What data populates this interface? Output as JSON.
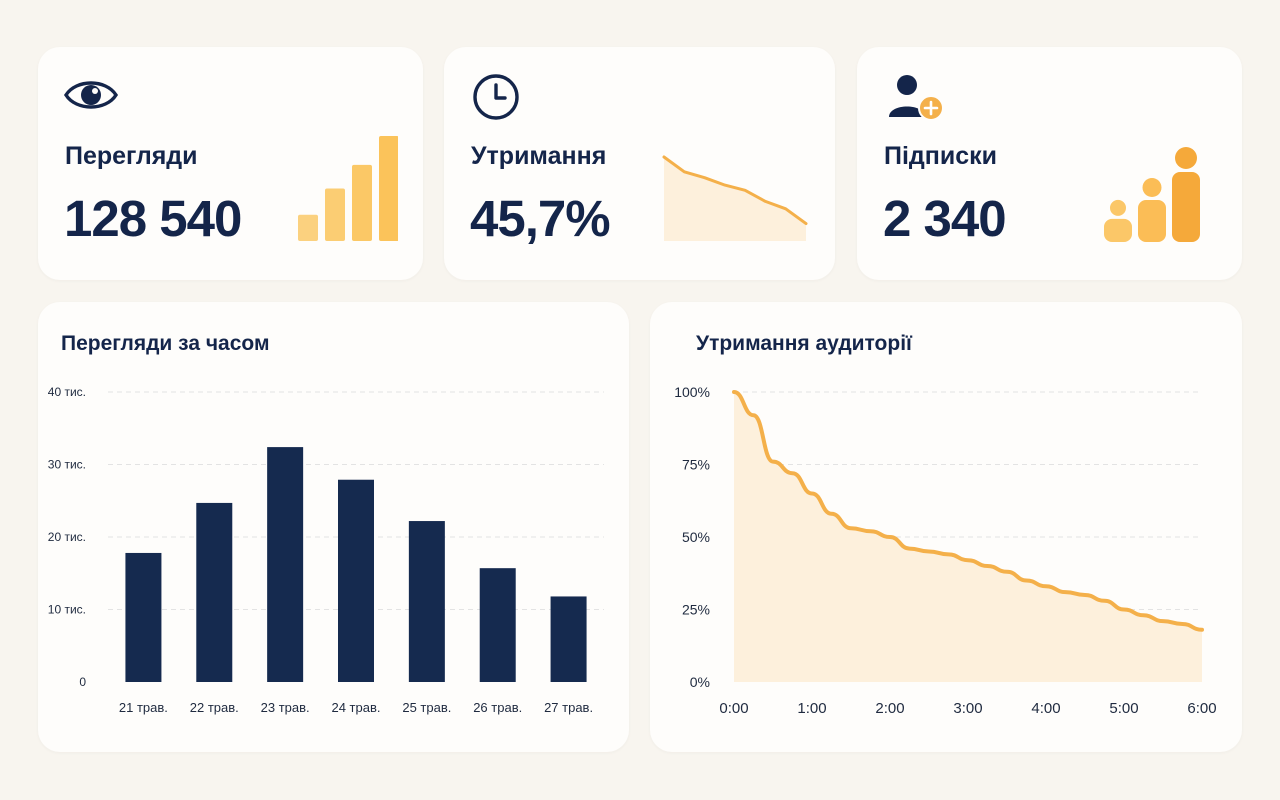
{
  "kpis": {
    "views": {
      "label": "Перегляди",
      "value": "128 540",
      "icon": "eye-icon",
      "spark_values": [
        0.2,
        0.4,
        0.58,
        0.8
      ]
    },
    "retention": {
      "label": "Утримання",
      "value": "45,7%",
      "icon": "clock-icon",
      "spark_values": [
        1.0,
        0.8,
        0.72,
        0.62,
        0.55,
        0.4,
        0.3,
        0.1
      ]
    },
    "subscriptions": {
      "label": "Підписки",
      "value": "2 340",
      "icon": "user-plus-icon",
      "spark_values": [
        0.33,
        0.6,
        1.0
      ]
    }
  },
  "colors": {
    "navy": "#14254a",
    "bar": "#152a4f",
    "accent": "#f4b04a",
    "accent_light": "#fbd17f",
    "fill": "#fdf0dc",
    "grid": "#e3e3e3",
    "card": "#fefdfb",
    "background": "#f8f5ef"
  },
  "chart_data": [
    {
      "type": "bar",
      "title": "Перегляди за часом",
      "categories": [
        "21 трав.",
        "22 трав.",
        "23 трав.",
        "24 трав.",
        "25 трав.",
        "26 трав.",
        "27 трав."
      ],
      "values": [
        17800,
        24700,
        32400,
        27900,
        22200,
        15700,
        11800
      ],
      "y_ticks": [
        {
          "value": 0,
          "label": "0"
        },
        {
          "value": 10000,
          "label": "10 тис."
        },
        {
          "value": 20000,
          "label": "20 тис."
        },
        {
          "value": 30000,
          "label": "30 тис."
        },
        {
          "value": 40000,
          "label": "40 тис."
        }
      ],
      "ylim": [
        0,
        40000
      ],
      "grid": true
    },
    {
      "type": "area",
      "title": "Утримання аудиторії",
      "x": [
        0,
        0.25,
        0.5,
        0.75,
        1.0,
        1.25,
        1.5,
        1.75,
        2.0,
        2.25,
        2.5,
        2.75,
        3.0,
        3.25,
        3.5,
        3.75,
        4.0,
        4.25,
        4.5,
        4.75,
        5.0,
        5.25,
        5.5,
        5.75,
        6.0
      ],
      "values": [
        100,
        92,
        76,
        72,
        65,
        58,
        53,
        52,
        50,
        46,
        45,
        44,
        42,
        40,
        38,
        35,
        33,
        31,
        30,
        28,
        25,
        23,
        21,
        20,
        18
      ],
      "x_ticks": [
        {
          "value": 0,
          "label": "0:00"
        },
        {
          "value": 1,
          "label": "1:00"
        },
        {
          "value": 2,
          "label": "2:00"
        },
        {
          "value": 3,
          "label": "3:00"
        },
        {
          "value": 4,
          "label": "4:00"
        },
        {
          "value": 5,
          "label": "5:00"
        },
        {
          "value": 6,
          "label": "6:00"
        }
      ],
      "y_ticks": [
        {
          "value": 0,
          "label": "0%"
        },
        {
          "value": 25,
          "label": "25%"
        },
        {
          "value": 50,
          "label": "50%"
        },
        {
          "value": 75,
          "label": "75%"
        },
        {
          "value": 100,
          "label": "100%"
        }
      ],
      "xlim": [
        0,
        6
      ],
      "ylim": [
        0,
        100
      ],
      "grid": true
    }
  ]
}
